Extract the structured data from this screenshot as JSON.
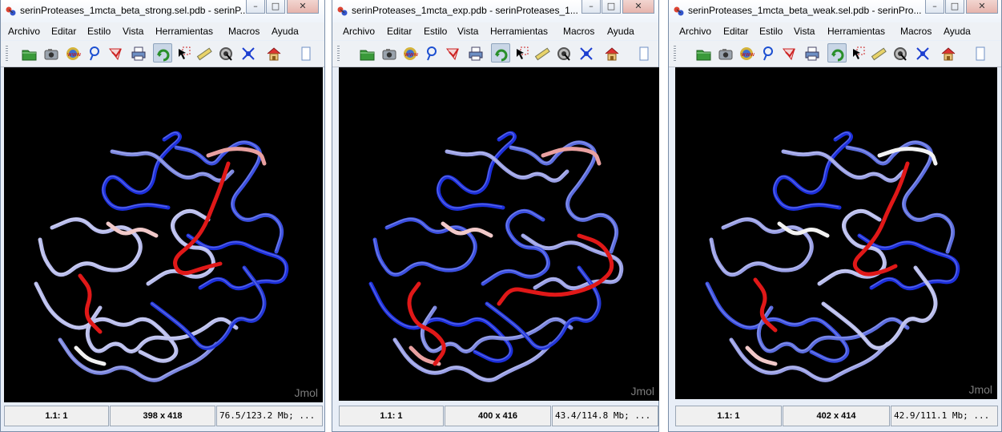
{
  "menu": [
    "Archivo",
    "Editar",
    "Estilo",
    "Vista",
    "Herramientas",
    "Macros",
    "Ayuda"
  ],
  "toolbar_icons": [
    "open-file-icon",
    "camera-icon",
    "www-icon",
    "help-pointer-icon",
    "script-editor-icon",
    "print-icon",
    "rotate-icon",
    "select-pointer-icon",
    "measure-ruler-icon",
    "pick-center-icon",
    "molecule-icon",
    "home-icon",
    "overflow-icon"
  ],
  "watermark": "Jmol",
  "colors": {
    "blue": "#1c2fdc",
    "red": "#e01818",
    "white": "#f2f2f2"
  },
  "windows": [
    {
      "title": "serinProteases_1mcta_beta_strong.sel.pdb - serinP...",
      "status": {
        "frame": "1.1: 1",
        "size": "398 x 418",
        "memory": "76.5/123.2 Mb; ..."
      }
    },
    {
      "title": "serinProteases_1mcta_exp.pdb - serinProteases_1...",
      "status": {
        "frame": "1.1: 1",
        "size": "400 x 416",
        "memory": "43.4/114.8 Mb; ..."
      }
    },
    {
      "title": "serinProteases_1mcta_beta_weak.sel.pdb - serinPro...",
      "status": {
        "frame": "1.1: 1",
        "size": "402 x 414",
        "memory": "42.9/111.1 Mb; ..."
      }
    }
  ]
}
